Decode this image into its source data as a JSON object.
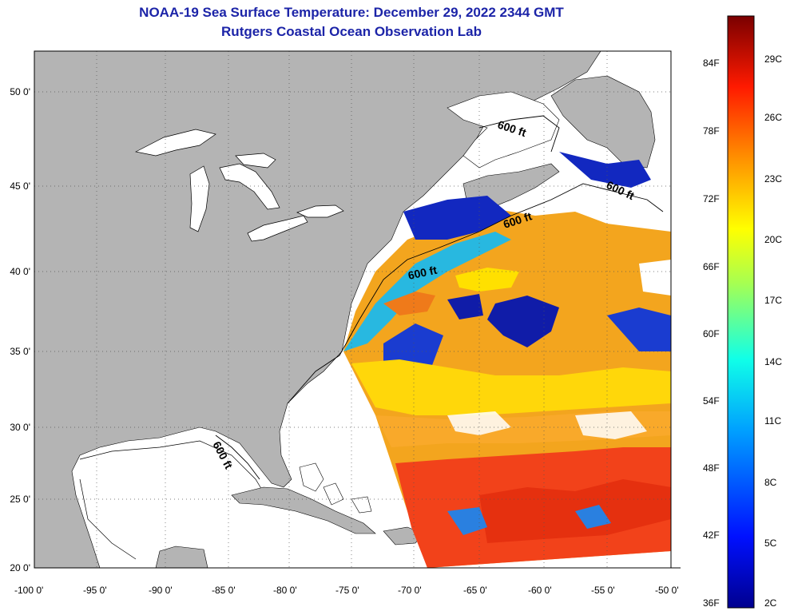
{
  "title": "NOAA-19 Sea Surface Temperature:  December 29, 2022 2344 GMT",
  "subtitle": "Rutgers Coastal Ocean Observation Lab",
  "lat_ticks": [
    "50 0'",
    "45 0'",
    "40 0'",
    "35 0'",
    "30 0'",
    "25 0'",
    "20 0'"
  ],
  "lon_ticks": [
    "-100 0'",
    "-95 0'",
    "-90 0'",
    "-85 0'",
    "-80 0'",
    "-75 0'",
    "-70 0'",
    "-65 0'",
    "-60 0'",
    "-55 0'",
    "-50 0'"
  ],
  "contour_label": "600 ft",
  "colorbar": {
    "f_labels": [
      "84F",
      "78F",
      "72F",
      "66F",
      "60F",
      "54F",
      "48F",
      "42F",
      "36F"
    ],
    "c_labels": [
      "29C",
      "26C",
      "23C",
      "20C",
      "17C",
      "14C",
      "11C",
      "8C",
      "5C",
      "2C"
    ]
  },
  "colors": {
    "land": "#b4b4b4",
    "title": "#1c24a8",
    "warm": "#e83a10",
    "cold": "#1020a0"
  }
}
